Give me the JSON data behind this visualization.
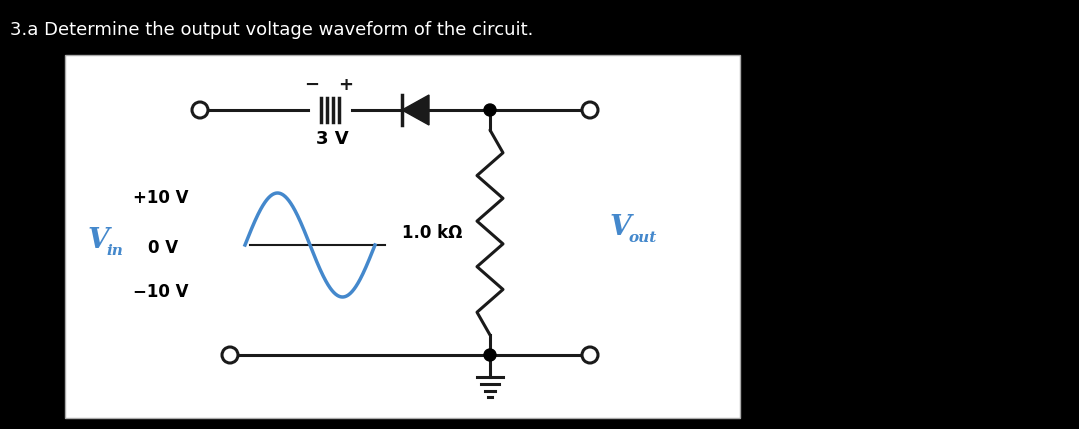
{
  "title": "3.a Determine the output voltage waveform of the circuit.",
  "title_color": "#ffffff",
  "title_fontsize": 13,
  "background_outer": "#000000",
  "background_inner": "#ffffff",
  "battery_voltage": "3 V",
  "resistor_label": "1.0 kΩ",
  "sine_color": "#4488cc",
  "label_color": "#4488cc",
  "wire_color": "#1a1a1a",
  "node_color": "#000000",
  "vin_plus": "+10 V",
  "vin_zero": "0 V",
  "vin_minus": "-10 V",
  "text_color": "#000000"
}
